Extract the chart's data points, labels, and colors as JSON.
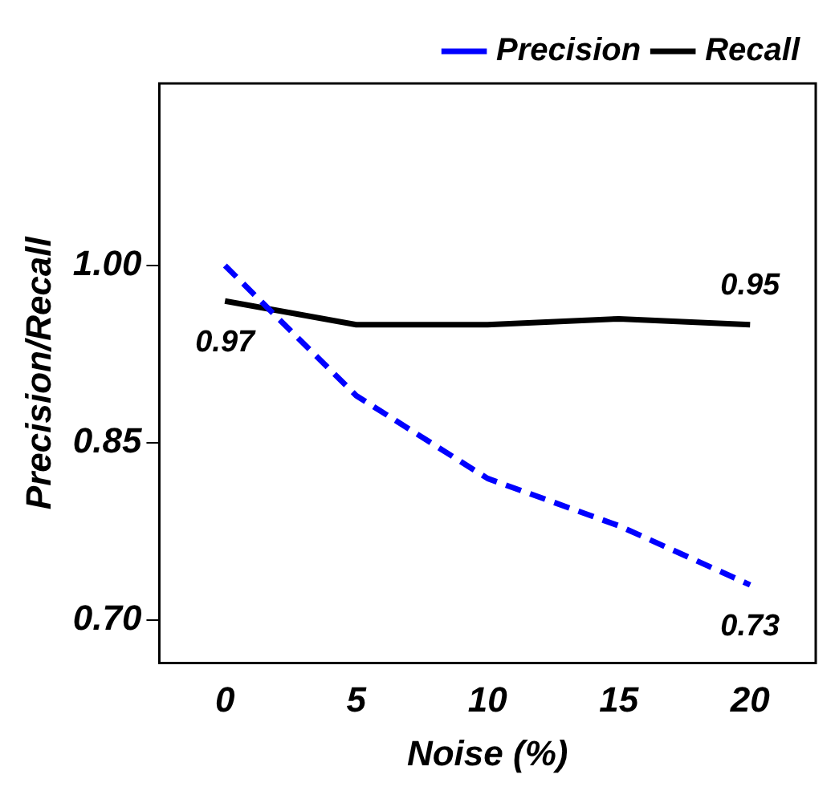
{
  "chart_data": {
    "type": "line",
    "xlabel": "Noise (%)",
    "ylabel": "Precision/Recall",
    "x": [
      0,
      5,
      10,
      15,
      20
    ],
    "series": [
      {
        "name": "Precision",
        "color": "#0000ff",
        "line_style": "dashed",
        "values": [
          1.0,
          0.89,
          0.82,
          0.78,
          0.73
        ],
        "value_labels": [
          null,
          null,
          null,
          null,
          "0.73"
        ]
      },
      {
        "name": "Recall",
        "color": "#000000",
        "line_style": "solid",
        "values": [
          0.97,
          0.95,
          0.95,
          0.955,
          0.95
        ],
        "value_labels": [
          "0.97",
          null,
          null,
          null,
          "0.95"
        ]
      }
    ],
    "xlim": [
      -2.5,
      22.5
    ],
    "xticks": [
      0,
      5,
      10,
      15,
      20
    ],
    "ylim": [
      0.664,
      1.154
    ],
    "yticks": [
      {
        "value": 0.7,
        "label": "0.70"
      },
      {
        "value": 0.85,
        "label": "0.85"
      },
      {
        "value": 1.0,
        "label": "1.00"
      }
    ],
    "legend": "top right",
    "grid": false,
    "marker": "none"
  }
}
